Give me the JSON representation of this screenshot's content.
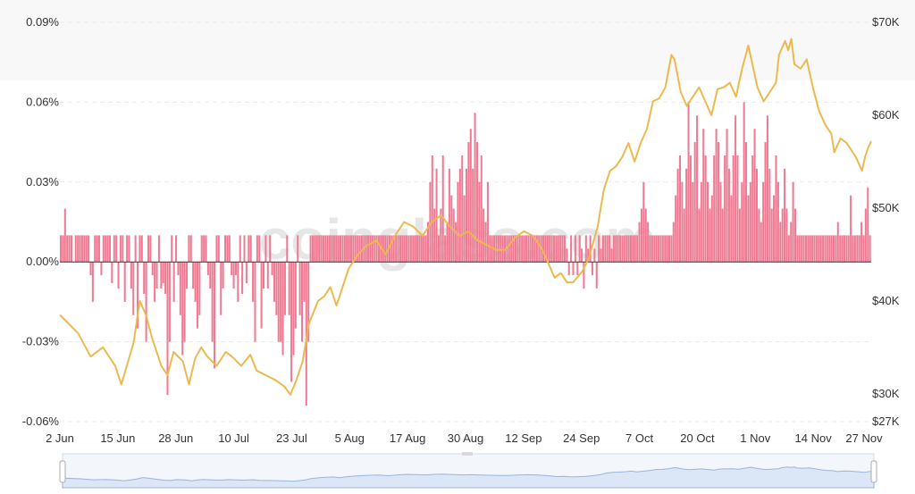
{
  "watermark": "coinglass.com",
  "colors": {
    "bars": "#f07a92",
    "price_line": "#ecb94f",
    "grid": "#e9e9e9",
    "zero_line": "#333333",
    "slider_fill": "#dbe6f7",
    "slider_line": "#9ab4dc",
    "slider_handle": "#ffffff"
  },
  "chart_data": {
    "type": "bar",
    "series": [
      {
        "axis": "left",
        "type": "bar"
      },
      {
        "axis": "right",
        "type": "line"
      }
    ],
    "x_ticks": [
      "2 Jun",
      "15 Jun",
      "28 Jun",
      "10 Jul",
      "23 Jul",
      "5 Aug",
      "17 Aug",
      "30 Aug",
      "12 Sep",
      "24 Sep",
      "7 Oct",
      "20 Oct",
      "1 Nov",
      "14 Nov",
      "27 Nov"
    ],
    "y_left_ticks": [
      "0.09%",
      "0.06%",
      "0.03%",
      "0.00%",
      "-0.03%",
      "-0.06%"
    ],
    "y_left_range": [
      -0.06,
      0.09
    ],
    "y_right_ticks": [
      "$70K",
      "$60K",
      "$50K",
      "$40K",
      "$30K",
      "$27K"
    ],
    "y_right_range": [
      27000,
      70000
    ],
    "bars_pct": [
      0.01,
      0.01,
      0.02,
      0.01,
      0.01,
      0.01,
      0.0,
      0.01,
      0.01,
      0.01,
      0.01,
      0.01,
      0.01,
      0.01,
      -0.005,
      -0.015,
      0.01,
      0.01,
      0.01,
      -0.005,
      0.01,
      0.01,
      0.01,
      0.01,
      -0.008,
      0.01,
      0.01,
      -0.01,
      0.01,
      0.01,
      -0.015,
      0.01,
      0.01,
      -0.01,
      -0.02,
      0.01,
      -0.025,
      0.01,
      0.01,
      -0.012,
      -0.03,
      0.01,
      0.01,
      -0.005,
      -0.015,
      -0.01,
      0.01,
      -0.01,
      -0.008,
      -0.012,
      -0.05,
      -0.03,
      0.01,
      -0.015,
      0.01,
      -0.005,
      -0.02,
      -0.035,
      -0.03,
      -0.01,
      0.01,
      0.01,
      -0.01,
      -0.015,
      -0.025,
      -0.02,
      0.01,
      0.01,
      0.01,
      -0.005,
      -0.01,
      -0.03,
      -0.04,
      0.01,
      0.01,
      -0.02,
      -0.01,
      0.01,
      0.01,
      0.01,
      -0.005,
      -0.01,
      -0.005,
      -0.015,
      0.01,
      -0.012,
      0.01,
      -0.008,
      0.01,
      0.01,
      -0.015,
      -0.03,
      0.01,
      0.01,
      -0.025,
      -0.01,
      0.01,
      -0.01,
      0.01,
      -0.005,
      -0.015,
      -0.02,
      -0.03,
      -0.03,
      -0.035,
      -0.02,
      0.01,
      -0.02,
      -0.045,
      -0.035,
      -0.025,
      0.01,
      -0.02,
      -0.03,
      -0.015,
      -0.054,
      -0.03,
      0.01,
      0.01,
      0.01,
      0.01,
      0.01,
      0.01,
      0.01,
      0.01,
      0.01,
      0.01,
      0.01,
      0.01,
      0.01,
      0.01,
      0.01,
      0.01,
      0.01,
      0.01,
      0.01,
      0.01,
      0.01,
      0.01,
      0.01,
      0.01,
      0.01,
      0.01,
      0.01,
      0.01,
      0.01,
      0.01,
      0.01,
      0.01,
      0.01,
      0.01,
      0.01,
      0.01,
      0.01,
      0.01,
      0.01,
      0.01,
      0.01,
      0.01,
      0.01,
      0.01,
      0.01,
      0.01,
      0.01,
      0.01,
      0.01,
      0.01,
      0.01,
      0.01,
      0.01,
      0.01,
      0.01,
      0.015,
      0.03,
      0.04,
      0.02,
      0.035,
      0.01,
      0.02,
      0.04,
      0.01,
      0.015,
      0.035,
      0.025,
      0.02,
      0.015,
      0.03,
      0.035,
      0.04,
      0.025,
      0.035,
      0.045,
      0.05,
      0.035,
      0.056,
      0.045,
      0.03,
      0.04,
      0.02,
      0.015,
      0.03,
      0.01,
      0.01,
      0.01,
      0.01,
      0.01,
      0.01,
      0.01,
      0.01,
      0.01,
      0.01,
      0.01,
      0.01,
      0.01,
      0.01,
      0.01,
      0.01,
      0.01,
      0.01,
      0.01,
      0.01,
      0.01,
      0.01,
      0.01,
      0.01,
      0.01,
      0.01,
      0.01,
      0.01,
      0.01,
      0.01,
      0.01,
      0.01,
      0.01,
      0.01,
      0.01,
      0.01,
      0.005,
      -0.005,
      0.01,
      -0.005,
      0.01,
      -0.005,
      0.01,
      0.005,
      -0.01,
      0.01,
      0.005,
      0.01,
      -0.005,
      0.005,
      -0.01,
      0.01,
      0.005,
      0.01,
      0.01,
      0.01,
      0.01,
      0.005,
      0.01,
      0.01,
      0.01,
      0.01,
      0.01,
      0.01,
      0.01,
      0.01,
      0.01,
      0.01,
      0.01,
      0.01,
      0.015,
      0.02,
      0.03,
      0.02,
      0.015,
      0.01,
      0.01,
      0.01,
      0.01,
      0.01,
      0.01,
      0.01,
      0.01,
      0.01,
      0.01,
      0.01,
      0.015,
      0.025,
      0.035,
      0.04,
      0.03,
      0.02,
      0.035,
      0.06,
      0.04,
      0.03,
      0.045,
      0.055,
      0.02,
      0.03,
      0.05,
      0.04,
      0.03,
      0.02,
      0.025,
      0.04,
      0.05,
      0.045,
      0.03,
      0.02,
      0.04,
      0.05,
      0.035,
      0.025,
      0.04,
      0.055,
      0.04,
      0.02,
      0.03,
      0.06,
      0.045,
      0.025,
      0.03,
      0.04,
      0.05,
      0.035,
      0.02,
      0.015,
      0.03,
      0.045,
      0.055,
      0.035,
      0.02,
      0.025,
      0.04,
      0.03,
      0.015,
      0.02,
      0.035,
      0.02,
      0.01,
      0.015,
      0.03,
      0.02,
      0.01,
      0.01,
      0.01,
      0.01,
      0.01,
      0.01,
      0.01,
      0.01,
      0.01,
      0.01,
      0.01,
      0.01,
      0.01,
      0.01,
      0.01,
      0.01,
      0.01,
      0.01,
      0.01,
      0.015,
      0.01,
      0.01,
      0.01,
      0.01,
      0.01,
      0.025,
      0.01,
      0.01,
      0.01,
      0.01,
      0.015,
      0.01,
      0.02,
      0.028,
      0.01
    ],
    "price_usd": [
      [
        0,
        38500
      ],
      [
        6,
        36500
      ],
      [
        10,
        34000
      ],
      [
        14,
        35000
      ],
      [
        18,
        33000
      ],
      [
        20,
        31000
      ],
      [
        24,
        35500
      ],
      [
        26,
        40000
      ],
      [
        28,
        38500
      ],
      [
        30,
        36000
      ],
      [
        33,
        33000
      ],
      [
        35,
        32000
      ],
      [
        37,
        34500
      ],
      [
        40,
        33500
      ],
      [
        42,
        31000
      ],
      [
        44,
        33800
      ],
      [
        46,
        35000
      ],
      [
        48,
        34000
      ],
      [
        51,
        33000
      ],
      [
        54,
        34500
      ],
      [
        56,
        34000
      ],
      [
        59,
        33000
      ],
      [
        62,
        34200
      ],
      [
        64,
        32500
      ],
      [
        67,
        32000
      ],
      [
        70,
        31500
      ],
      [
        73,
        30800
      ],
      [
        75,
        29900
      ],
      [
        77,
        31500
      ],
      [
        79,
        33500
      ],
      [
        81,
        37500
      ],
      [
        84,
        40000
      ],
      [
        86,
        40500
      ],
      [
        88,
        41500
      ],
      [
        90,
        39500
      ],
      [
        92,
        41500
      ],
      [
        94,
        43500
      ],
      [
        97,
        45000
      ],
      [
        100,
        46000
      ],
      [
        103,
        46500
      ],
      [
        106,
        45000
      ],
      [
        109,
        47000
      ],
      [
        112,
        48500
      ],
      [
        115,
        48000
      ],
      [
        118,
        47000
      ],
      [
        121,
        48500
      ],
      [
        124,
        49200
      ],
      [
        127,
        48000
      ],
      [
        130,
        47000
      ],
      [
        133,
        47500
      ],
      [
        136,
        46500
      ],
      [
        139,
        46000
      ],
      [
        142,
        45500
      ],
      [
        145,
        45500
      ],
      [
        148,
        46800
      ],
      [
        151,
        47500
      ],
      [
        154,
        47000
      ],
      [
        157,
        45500
      ],
      [
        159,
        44000
      ],
      [
        161,
        42500
      ],
      [
        163,
        43000
      ],
      [
        165,
        42000
      ],
      [
        167,
        42000
      ],
      [
        170,
        43200
      ],
      [
        172,
        44500
      ],
      [
        175,
        48000
      ],
      [
        177,
        52000
      ],
      [
        179,
        54000
      ],
      [
        181,
        54500
      ],
      [
        183,
        55500
      ],
      [
        185,
        57000
      ],
      [
        187,
        55000
      ],
      [
        189,
        57000
      ],
      [
        191,
        58500
      ],
      [
        193,
        61500
      ],
      [
        195,
        61800
      ],
      [
        197,
        63000
      ],
      [
        199,
        66500
      ],
      [
        200,
        66000
      ],
      [
        202,
        62500
      ],
      [
        204,
        61000
      ],
      [
        206,
        62000
      ],
      [
        208,
        63000
      ],
      [
        210,
        61500
      ],
      [
        212,
        60000
      ],
      [
        214,
        62800
      ],
      [
        216,
        63000
      ],
      [
        218,
        63500
      ],
      [
        220,
        62000
      ],
      [
        222,
        65000
      ],
      [
        224,
        67500
      ],
      [
        225,
        66000
      ],
      [
        227,
        63000
      ],
      [
        229,
        61500
      ],
      [
        231,
        62500
      ],
      [
        233,
        63500
      ],
      [
        234,
        66500
      ],
      [
        236,
        68000
      ],
      [
        237,
        67000
      ],
      [
        238,
        68200
      ],
      [
        239,
        65500
      ],
      [
        241,
        65000
      ],
      [
        243,
        66000
      ],
      [
        245,
        63000
      ],
      [
        247,
        60500
      ],
      [
        249,
        59000
      ],
      [
        251,
        58000
      ],
      [
        252,
        56000
      ],
      [
        254,
        57500
      ],
      [
        256,
        57000
      ],
      [
        258,
        56000
      ],
      [
        259,
        55500
      ],
      [
        261,
        54000
      ],
      [
        262,
        55500
      ],
      [
        263,
        56500
      ],
      [
        264,
        57200
      ]
    ]
  }
}
